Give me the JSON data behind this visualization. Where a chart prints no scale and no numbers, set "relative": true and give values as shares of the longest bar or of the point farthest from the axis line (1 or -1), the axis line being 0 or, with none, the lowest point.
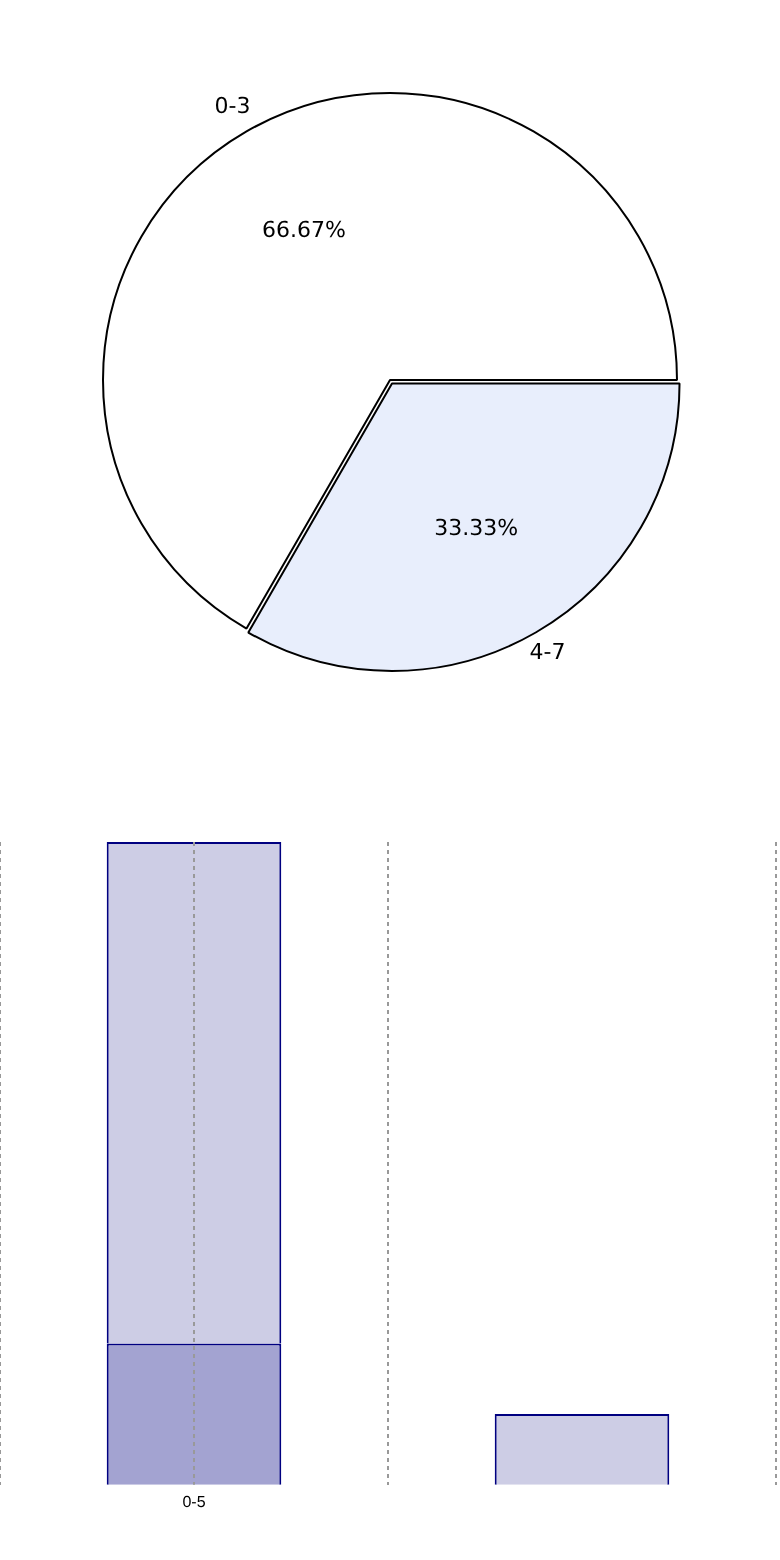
{
  "chart_data": [
    {
      "type": "pie",
      "categories": [
        "0-3",
        "4-7"
      ],
      "values": [
        66.67,
        33.33
      ],
      "colors": [
        "#ffffff",
        "#e8eefc"
      ],
      "value_labels": [
        "66.67%",
        "33.33%"
      ],
      "legend": false
    },
    {
      "type": "bar",
      "relative": true,
      "stacked": true,
      "categories": [
        "0-5",
        null
      ],
      "grid": "x",
      "legend": false,
      "series": [
        {
          "color": "#a3a3d1",
          "values": [
            0.22,
            null
          ]
        },
        {
          "color": "#cdcde5",
          "values": [
            0.78,
            0.11
          ]
        }
      ]
    }
  ]
}
